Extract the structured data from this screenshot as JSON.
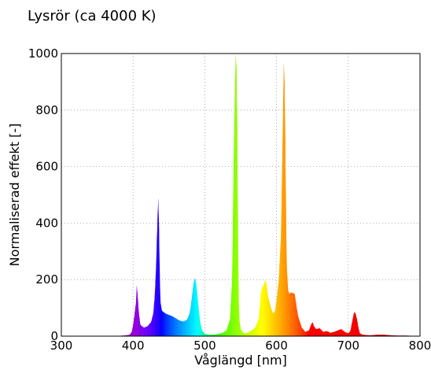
{
  "chart_data": {
    "type": "area",
    "title": "Lysrör (ca 4000 K)",
    "xlabel": "Våglängd [nm]",
    "ylabel": "Normaliserad effekt [-]",
    "xlim": [
      300,
      800
    ],
    "ylim": [
      0,
      1000
    ],
    "xticks": [
      300,
      400,
      500,
      600,
      700,
      800
    ],
    "yticks": [
      0,
      200,
      400,
      600,
      800,
      1000
    ],
    "grid": true,
    "fill": "spectral wavelength colors",
    "series": [
      {
        "x": [
          380,
          385,
          390,
          395,
          398,
          400,
          402,
          404,
          405,
          406,
          408,
          410,
          415,
          420,
          425,
          428,
          430,
          432,
          434,
          435,
          436,
          437,
          438,
          440,
          445,
          450,
          455,
          460,
          465,
          470,
          475,
          478,
          480,
          482,
          484,
          486,
          487,
          488,
          490,
          492,
          494,
          496,
          500,
          505,
          510,
          515,
          520,
          525,
          530,
          535,
          538,
          540,
          542,
          543,
          544,
          545,
          546,
          547,
          548,
          550,
          552,
          555,
          560,
          565,
          570,
          575,
          578,
          580,
          582,
          584,
          586,
          588,
          590,
          592,
          595,
          598,
          600,
          603,
          606,
          608,
          610,
          611,
          612,
          613,
          614,
          616,
          618,
          620,
          625,
          628,
          630,
          635,
          640,
          645,
          648,
          650,
          652,
          655,
          660,
          665,
          670,
          675,
          680,
          685,
          690,
          695,
          700,
          703,
          706,
          708,
          710,
          712,
          714,
          716,
          720,
          730,
          740,
          750,
          760,
          770,
          780,
          800
        ],
        "y": [
          0,
          2,
          3,
          5,
          15,
          40,
          80,
          120,
          180,
          150,
          80,
          40,
          30,
          35,
          50,
          80,
          140,
          250,
          420,
          490,
          380,
          220,
          120,
          90,
          80,
          75,
          70,
          62,
          55,
          52,
          58,
          75,
          100,
          140,
          185,
          205,
          200,
          180,
          130,
          80,
          40,
          20,
          8,
          5,
          5,
          6,
          8,
          12,
          20,
          60,
          200,
          600,
          900,
          1000,
          950,
          750,
          400,
          150,
          60,
          25,
          15,
          10,
          12,
          20,
          30,
          60,
          150,
          175,
          180,
          200,
          180,
          140,
          120,
          100,
          80,
          90,
          130,
          200,
          350,
          650,
          970,
          900,
          700,
          450,
          250,
          160,
          150,
          155,
          150,
          100,
          70,
          30,
          15,
          20,
          40,
          50,
          35,
          25,
          28,
          15,
          18,
          12,
          15,
          20,
          25,
          15,
          10,
          20,
          60,
          85,
          80,
          60,
          30,
          10,
          5,
          3,
          5,
          5,
          3,
          2,
          2,
          0
        ]
      }
    ]
  }
}
